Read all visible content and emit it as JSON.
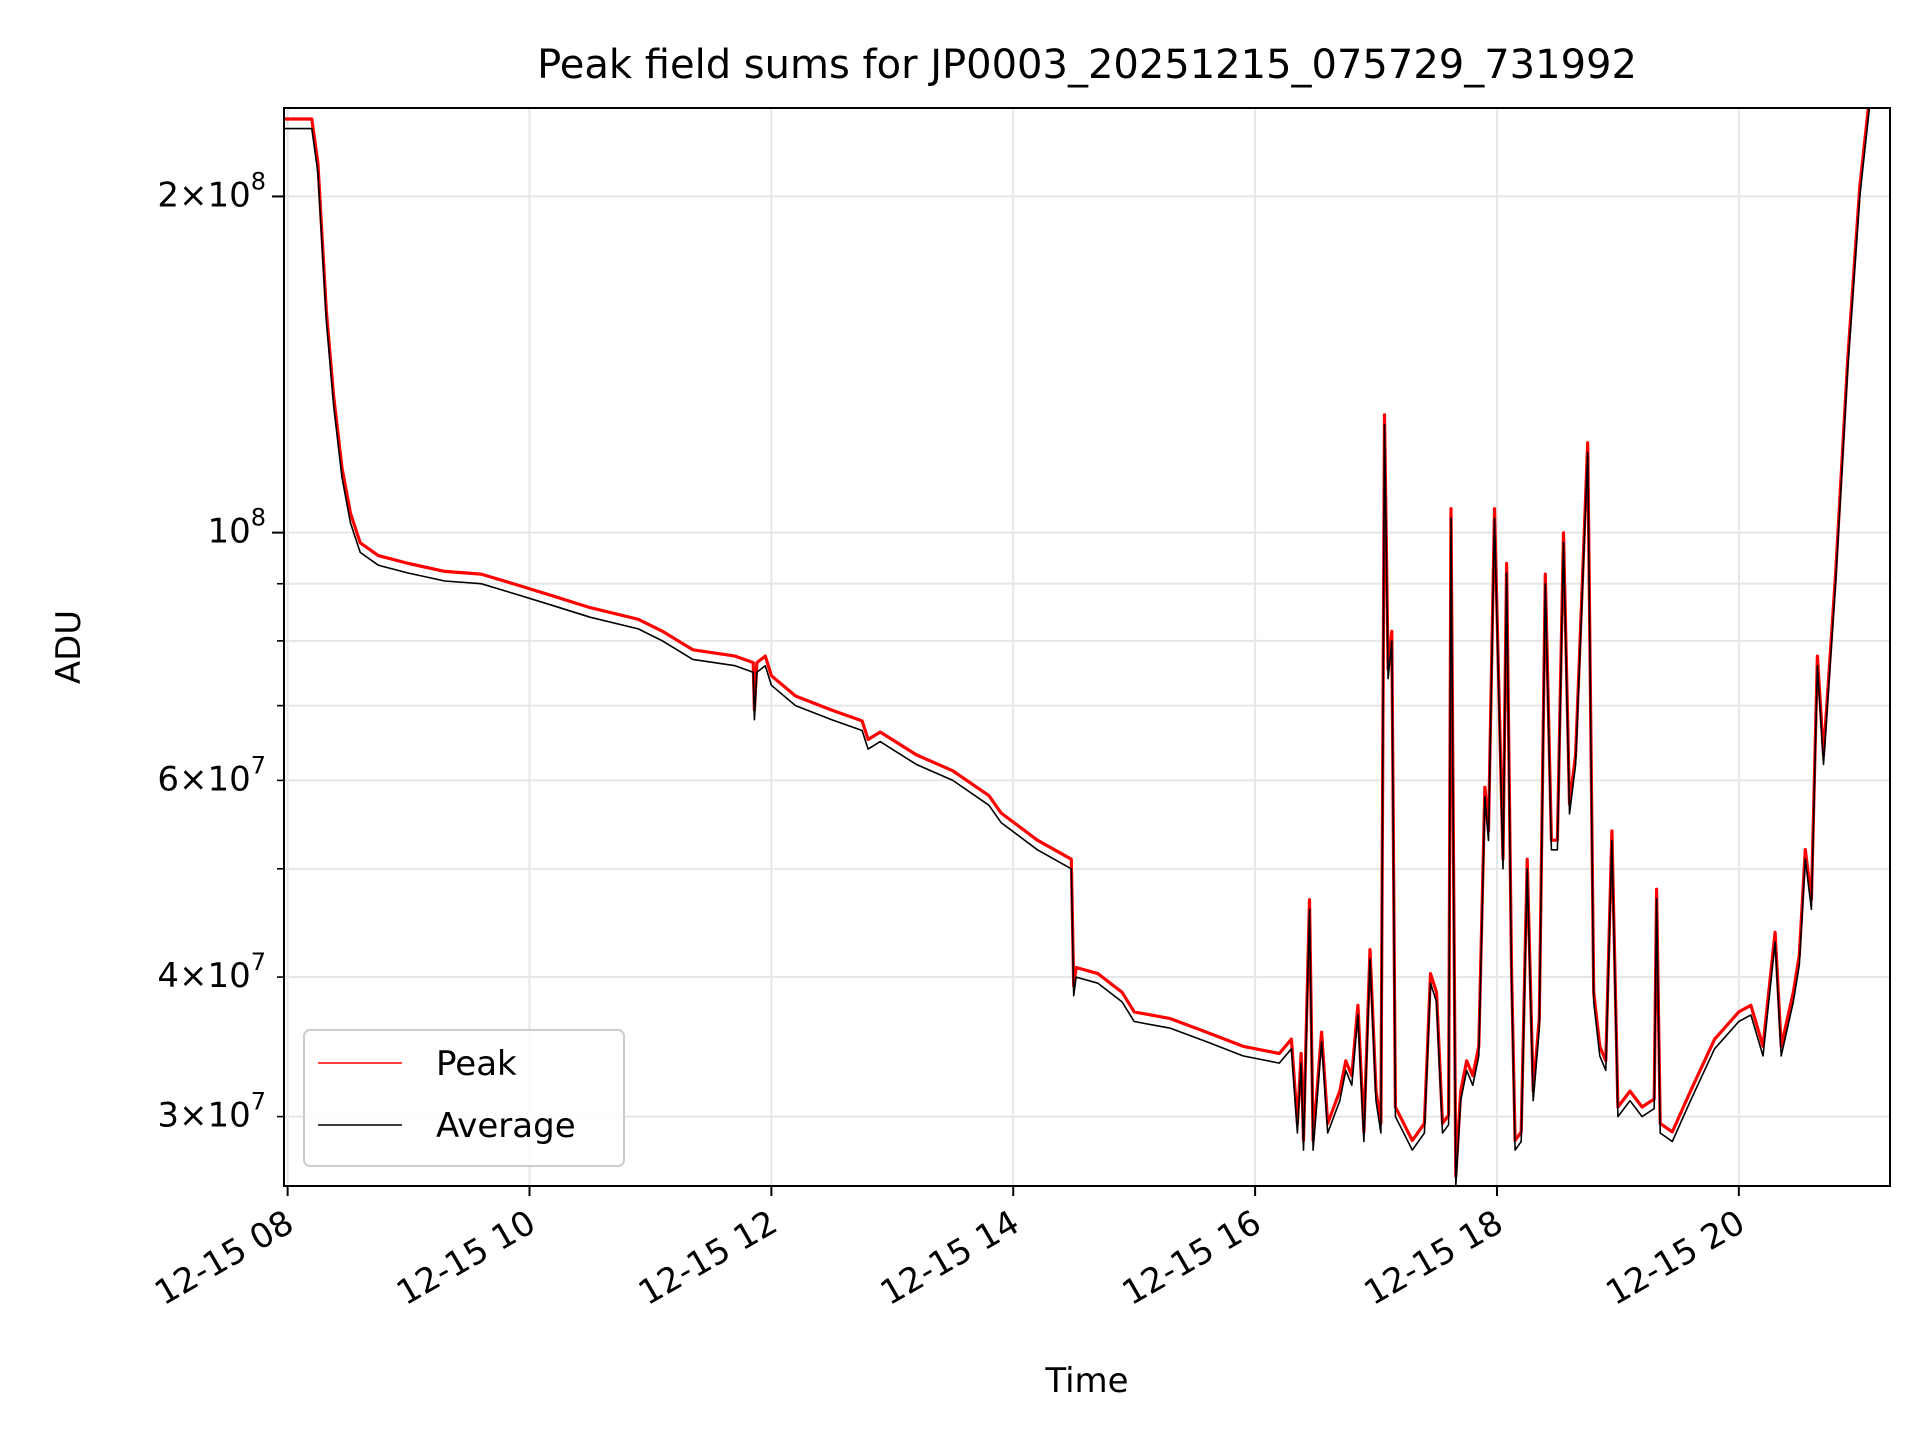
{
  "chart_data": {
    "type": "line",
    "title": "Peak field sums for JP0003_20251215_075729_731992",
    "xlabel": "Time",
    "ylabel": "ADU",
    "yscale": "log",
    "ylim": [
      26000000,
      240000000
    ],
    "xlim_hours": [
      7.97,
      21.25
    ],
    "grid": true,
    "legend_position": "lower-left",
    "x_ticks": [
      {
        "hour": 8,
        "label": "12-15 08"
      },
      {
        "hour": 10,
        "label": "12-15 10"
      },
      {
        "hour": 12,
        "label": "12-15 12"
      },
      {
        "hour": 14,
        "label": "12-15 14"
      },
      {
        "hour": 16,
        "label": "12-15 16"
      },
      {
        "hour": 18,
        "label": "12-15 18"
      },
      {
        "hour": 20,
        "label": "12-15 20"
      }
    ],
    "y_ticks_major": [
      {
        "value": 100000000,
        "mantissa": "",
        "exp": "8"
      },
      {
        "value": 200000000,
        "mantissa": "2",
        "exp": "8"
      }
    ],
    "y_ticks_minor": [
      {
        "value": 30000000,
        "mantissa": "3",
        "exp": "7"
      },
      {
        "value": 40000000,
        "mantissa": "4",
        "exp": "7"
      },
      {
        "value": 50000000,
        "mantissa": "",
        "exp": ""
      },
      {
        "value": 60000000,
        "mantissa": "6",
        "exp": "7"
      },
      {
        "value": 70000000,
        "mantissa": "",
        "exp": ""
      },
      {
        "value": 80000000,
        "mantissa": "",
        "exp": ""
      },
      {
        "value": 90000000,
        "mantissa": "",
        "exp": ""
      }
    ],
    "series": [
      {
        "name": "Peak",
        "color": "#ff0000",
        "offset_factor": 1.02,
        "points": [
          [
            7.97,
            230000000
          ],
          [
            8.2,
            230000000
          ],
          [
            8.25,
            210000000
          ],
          [
            8.32,
            155000000
          ],
          [
            8.38,
            130000000
          ],
          [
            8.45,
            112000000
          ],
          [
            8.52,
            102000000
          ],
          [
            8.6,
            96000000
          ],
          [
            8.75,
            93500000
          ],
          [
            9.0,
            92000000
          ],
          [
            9.3,
            90500000
          ],
          [
            9.6,
            90000000
          ],
          [
            9.9,
            88000000
          ],
          [
            10.2,
            86000000
          ],
          [
            10.5,
            84000000
          ],
          [
            10.9,
            82000000
          ],
          [
            11.1,
            80000000
          ],
          [
            11.35,
            77000000
          ],
          [
            11.7,
            76000000
          ],
          [
            11.85,
            75000000
          ],
          [
            11.86,
            68000000
          ],
          [
            11.88,
            75000000
          ],
          [
            11.95,
            76000000
          ],
          [
            12.0,
            73000000
          ],
          [
            12.2,
            70000000
          ],
          [
            12.5,
            68000000
          ],
          [
            12.75,
            66500000
          ],
          [
            12.8,
            64000000
          ],
          [
            12.9,
            65000000
          ],
          [
            13.2,
            62000000
          ],
          [
            13.5,
            60000000
          ],
          [
            13.8,
            57000000
          ],
          [
            13.9,
            55000000
          ],
          [
            14.2,
            52000000
          ],
          [
            14.48,
            50000000
          ],
          [
            14.5,
            38500000
          ],
          [
            14.52,
            40000000
          ],
          [
            14.7,
            39500000
          ],
          [
            14.9,
            38000000
          ],
          [
            15.0,
            36500000
          ],
          [
            15.3,
            36000000
          ],
          [
            15.6,
            35000000
          ],
          [
            15.9,
            34000000
          ],
          [
            16.2,
            33500000
          ],
          [
            16.3,
            34500000
          ],
          [
            16.35,
            29000000
          ],
          [
            16.38,
            33500000
          ],
          [
            16.4,
            28000000
          ],
          [
            16.45,
            46000000
          ],
          [
            16.48,
            28000000
          ],
          [
            16.55,
            35000000
          ],
          [
            16.6,
            29000000
          ],
          [
            16.7,
            31000000
          ],
          [
            16.75,
            33000000
          ],
          [
            16.8,
            32000000
          ],
          [
            16.85,
            37000000
          ],
          [
            16.9,
            28500000
          ],
          [
            16.95,
            41500000
          ],
          [
            17.0,
            31000000
          ],
          [
            17.04,
            29000000
          ],
          [
            17.07,
            125000000
          ],
          [
            17.1,
            74000000
          ],
          [
            17.13,
            80000000
          ],
          [
            17.16,
            30000000
          ],
          [
            17.3,
            28000000
          ],
          [
            17.4,
            29000000
          ],
          [
            17.45,
            39500000
          ],
          [
            17.5,
            38000000
          ],
          [
            17.55,
            29000000
          ],
          [
            17.6,
            29500000
          ],
          [
            17.62,
            103000000
          ],
          [
            17.66,
            26000000
          ],
          [
            17.7,
            31000000
          ],
          [
            17.75,
            33000000
          ],
          [
            17.8,
            32000000
          ],
          [
            17.85,
            34000000
          ],
          [
            17.9,
            58000000
          ],
          [
            17.93,
            53000000
          ],
          [
            17.98,
            103000000
          ],
          [
            18.05,
            50000000
          ],
          [
            18.08,
            92000000
          ],
          [
            18.12,
            40000000
          ],
          [
            18.15,
            28000000
          ],
          [
            18.2,
            28500000
          ],
          [
            18.25,
            50000000
          ],
          [
            18.3,
            31000000
          ],
          [
            18.35,
            36000000
          ],
          [
            18.4,
            90000000
          ],
          [
            18.45,
            52000000
          ],
          [
            18.5,
            52000000
          ],
          [
            18.55,
            98000000
          ],
          [
            18.6,
            56000000
          ],
          [
            18.65,
            62000000
          ],
          [
            18.7,
            85000000
          ],
          [
            18.75,
            118000000
          ],
          [
            18.8,
            38000000
          ],
          [
            18.85,
            34000000
          ],
          [
            18.9,
            33000000
          ],
          [
            18.95,
            53000000
          ],
          [
            19.0,
            30000000
          ],
          [
            19.1,
            31000000
          ],
          [
            19.2,
            30000000
          ],
          [
            19.3,
            30500000
          ],
          [
            19.32,
            47000000
          ],
          [
            19.35,
            29000000
          ],
          [
            19.45,
            28500000
          ],
          [
            19.6,
            31000000
          ],
          [
            19.8,
            34500000
          ],
          [
            20.0,
            36500000
          ],
          [
            20.1,
            37000000
          ],
          [
            20.2,
            34000000
          ],
          [
            20.3,
            43000000
          ],
          [
            20.35,
            34000000
          ],
          [
            20.45,
            38000000
          ],
          [
            20.5,
            41000000
          ],
          [
            20.55,
            51000000
          ],
          [
            20.6,
            46000000
          ],
          [
            20.65,
            76000000
          ],
          [
            20.7,
            62000000
          ],
          [
            20.8,
            90000000
          ],
          [
            20.9,
            140000000
          ],
          [
            21.0,
            200000000
          ],
          [
            21.08,
            240000000
          ]
        ]
      },
      {
        "name": "Average",
        "color": "#000000",
        "offset_factor": 1.0,
        "points": [
          [
            7.97,
            230000000
          ],
          [
            8.2,
            230000000
          ],
          [
            8.25,
            210000000
          ],
          [
            8.32,
            155000000
          ],
          [
            8.38,
            130000000
          ],
          [
            8.45,
            112000000
          ],
          [
            8.52,
            102000000
          ],
          [
            8.6,
            96000000
          ],
          [
            8.75,
            93500000
          ],
          [
            9.0,
            92000000
          ],
          [
            9.3,
            90500000
          ],
          [
            9.6,
            90000000
          ],
          [
            9.9,
            88000000
          ],
          [
            10.2,
            86000000
          ],
          [
            10.5,
            84000000
          ],
          [
            10.9,
            82000000
          ],
          [
            11.1,
            80000000
          ],
          [
            11.35,
            77000000
          ],
          [
            11.7,
            76000000
          ],
          [
            11.85,
            75000000
          ],
          [
            11.86,
            68000000
          ],
          [
            11.88,
            75000000
          ],
          [
            11.95,
            76000000
          ],
          [
            12.0,
            73000000
          ],
          [
            12.2,
            70000000
          ],
          [
            12.5,
            68000000
          ],
          [
            12.75,
            66500000
          ],
          [
            12.8,
            64000000
          ],
          [
            12.9,
            65000000
          ],
          [
            13.2,
            62000000
          ],
          [
            13.5,
            60000000
          ],
          [
            13.8,
            57000000
          ],
          [
            13.9,
            55000000
          ],
          [
            14.2,
            52000000
          ],
          [
            14.48,
            50000000
          ],
          [
            14.5,
            38500000
          ],
          [
            14.52,
            40000000
          ],
          [
            14.7,
            39500000
          ],
          [
            14.9,
            38000000
          ],
          [
            15.0,
            36500000
          ],
          [
            15.3,
            36000000
          ],
          [
            15.6,
            35000000
          ],
          [
            15.9,
            34000000
          ],
          [
            16.2,
            33500000
          ],
          [
            16.3,
            34500000
          ],
          [
            16.35,
            29000000
          ],
          [
            16.38,
            33500000
          ],
          [
            16.4,
            28000000
          ],
          [
            16.45,
            46000000
          ],
          [
            16.48,
            28000000
          ],
          [
            16.55,
            35000000
          ],
          [
            16.6,
            29000000
          ],
          [
            16.7,
            31000000
          ],
          [
            16.75,
            33000000
          ],
          [
            16.8,
            32000000
          ],
          [
            16.85,
            37000000
          ],
          [
            16.9,
            28500000
          ],
          [
            16.95,
            41500000
          ],
          [
            17.0,
            31000000
          ],
          [
            17.04,
            29000000
          ],
          [
            17.07,
            125000000
          ],
          [
            17.1,
            74000000
          ],
          [
            17.13,
            80000000
          ],
          [
            17.16,
            30000000
          ],
          [
            17.3,
            28000000
          ],
          [
            17.4,
            29000000
          ],
          [
            17.45,
            39500000
          ],
          [
            17.5,
            38000000
          ],
          [
            17.55,
            29000000
          ],
          [
            17.6,
            29500000
          ],
          [
            17.62,
            103000000
          ],
          [
            17.66,
            26000000
          ],
          [
            17.7,
            31000000
          ],
          [
            17.75,
            33000000
          ],
          [
            17.8,
            32000000
          ],
          [
            17.85,
            34000000
          ],
          [
            17.9,
            58000000
          ],
          [
            17.93,
            53000000
          ],
          [
            17.98,
            103000000
          ],
          [
            18.05,
            50000000
          ],
          [
            18.08,
            92000000
          ],
          [
            18.12,
            40000000
          ],
          [
            18.15,
            28000000
          ],
          [
            18.2,
            28500000
          ],
          [
            18.25,
            50000000
          ],
          [
            18.3,
            31000000
          ],
          [
            18.35,
            36000000
          ],
          [
            18.4,
            90000000
          ],
          [
            18.45,
            52000000
          ],
          [
            18.5,
            52000000
          ],
          [
            18.55,
            98000000
          ],
          [
            18.6,
            56000000
          ],
          [
            18.65,
            62000000
          ],
          [
            18.7,
            85000000
          ],
          [
            18.75,
            118000000
          ],
          [
            18.8,
            38000000
          ],
          [
            18.85,
            34000000
          ],
          [
            18.9,
            33000000
          ],
          [
            18.95,
            53000000
          ],
          [
            19.0,
            30000000
          ],
          [
            19.1,
            31000000
          ],
          [
            19.2,
            30000000
          ],
          [
            19.3,
            30500000
          ],
          [
            19.32,
            47000000
          ],
          [
            19.35,
            29000000
          ],
          [
            19.45,
            28500000
          ],
          [
            19.6,
            31000000
          ],
          [
            19.8,
            34500000
          ],
          [
            20.0,
            36500000
          ],
          [
            20.1,
            37000000
          ],
          [
            20.2,
            34000000
          ],
          [
            20.3,
            43000000
          ],
          [
            20.35,
            34000000
          ],
          [
            20.45,
            38000000
          ],
          [
            20.5,
            41000000
          ],
          [
            20.55,
            51000000
          ],
          [
            20.6,
            46000000
          ],
          [
            20.65,
            76000000
          ],
          [
            20.7,
            62000000
          ],
          [
            20.8,
            90000000
          ],
          [
            20.9,
            140000000
          ],
          [
            21.0,
            200000000
          ],
          [
            21.08,
            240000000
          ]
        ]
      }
    ]
  }
}
